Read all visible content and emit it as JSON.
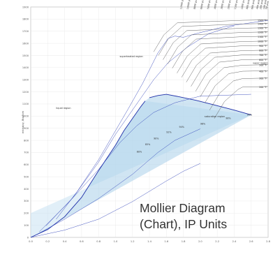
{
  "chart_data": {
    "type": "line",
    "title": "Mollier Diagram",
    "subtitle": "(Chart), IP Units",
    "xlabel": "",
    "ylabel": "enthalpy, Btu/lbm",
    "xlim": [
      0.0,
      2.8
    ],
    "ylim": [
      0,
      1900
    ],
    "x_ticks": [
      "0.0",
      "0.2",
      "0.4",
      "0.6",
      "0.8",
      "1.0",
      "1.2",
      "1.4",
      "1.6",
      "1.8",
      "2.0",
      "2.2",
      "2.4",
      "2.6",
      "2.8"
    ],
    "y_ticks": [
      "0",
      "100",
      "200",
      "300",
      "400",
      "500",
      "600",
      "700",
      "800",
      "900",
      "1000",
      "1100",
      "1200",
      "1300",
      "1400",
      "1500",
      "1600",
      "1700",
      "1800",
      "1900"
    ],
    "grid": true,
    "region_labels": [
      {
        "text": "superheated region",
        "x": 1.05,
        "y": 1485
      },
      {
        "text": "vapor region",
        "x": 2.62,
        "y": 1430
      },
      {
        "text": "liquid region",
        "x": 0.3,
        "y": 1060
      },
      {
        "text": "saturation region",
        "x": 2.05,
        "y": 990
      }
    ],
    "saturation_dome": {
      "liquid_line": [
        [
          0.0,
          0
        ],
        [
          0.2,
          65
        ],
        [
          0.4,
          170
        ],
        [
          0.6,
          330
        ],
        [
          0.8,
          550
        ],
        [
          1.0,
          760
        ],
        [
          1.1,
          880
        ],
        [
          1.2,
          980
        ],
        [
          1.3,
          1080
        ],
        [
          1.35,
          1125
        ]
      ],
      "critical_point": [
        1.4,
        1152
      ],
      "vapor_line": [
        [
          1.4,
          1152
        ],
        [
          1.5,
          1170
        ],
        [
          1.6,
          1180
        ],
        [
          1.75,
          1160
        ],
        [
          1.95,
          1130
        ],
        [
          2.15,
          1095
        ],
        [
          2.4,
          1050
        ],
        [
          2.6,
          1010
        ]
      ]
    },
    "isobars": [
      {
        "label": "0.1 psia",
        "points": [
          [
            0.0,
            0
          ],
          [
            0.4,
            60
          ],
          [
            0.8,
            150
          ],
          [
            1.2,
            295
          ],
          [
            1.6,
            465
          ],
          [
            1.8,
            545
          ],
          [
            2.0,
            610
          ]
        ]
      },
      {
        "label": "1 psia",
        "points": [
          [
            0.05,
            15
          ],
          [
            0.4,
            150
          ],
          [
            0.8,
            320
          ],
          [
            1.2,
            520
          ],
          [
            1.5,
            700
          ],
          [
            1.7,
            800
          ],
          [
            2.0,
            895
          ]
        ]
      },
      {
        "label": "10 psia",
        "points": [
          [
            0.1,
            45
          ],
          [
            0.45,
            290
          ],
          [
            0.8,
            560
          ],
          [
            1.05,
            780
          ],
          [
            1.25,
            920
          ],
          [
            1.45,
            1030
          ],
          [
            1.7,
            1110
          ],
          [
            2.0,
            1165
          ],
          [
            2.6,
            1180
          ]
        ]
      },
      {
        "label": "100 psia",
        "points": [
          [
            0.18,
            95
          ],
          [
            0.5,
            330
          ],
          [
            0.8,
            620
          ],
          [
            1.0,
            850
          ],
          [
            1.15,
            1000
          ],
          [
            1.3,
            1150
          ],
          [
            1.45,
            1300
          ],
          [
            1.62,
            1440
          ],
          [
            1.85,
            1570
          ],
          [
            2.1,
            1680
          ],
          [
            2.4,
            1745
          ]
        ]
      },
      {
        "label": "1000 psia",
        "points": [
          [
            0.3,
            150
          ],
          [
            0.55,
            380
          ],
          [
            0.8,
            640
          ],
          [
            1.0,
            880
          ],
          [
            1.15,
            1060
          ],
          [
            1.32,
            1270
          ],
          [
            1.5,
            1520
          ],
          [
            1.62,
            1640
          ],
          [
            1.7,
            1660
          ],
          [
            1.8,
            1650
          ],
          [
            1.95,
            1680
          ],
          [
            2.3,
            1740
          ],
          [
            2.8,
            1790
          ]
        ]
      }
    ],
    "isotherms_right_labels": [
      "1500 °F",
      "1400 °F",
      "1300 °F",
      "1200 °F",
      "1100 °F",
      "1000 °F",
      "900 °F",
      "800 °F",
      "700 °F",
      "600 °F",
      "500 °F",
      "400 °F",
      "300 °F",
      "200 °F"
    ],
    "isotherms_right_values": [
      1790,
      1760,
      1725,
      1690,
      1655,
      1615,
      1580,
      1540,
      1505,
      1465,
      1420,
      1370,
      1310,
      1240
    ],
    "pressure_top_labels": [
      "12000 psia",
      "10000 psia",
      "8000 psia",
      "6000 psia",
      "5000 psia",
      "4000 psia",
      "3000 psia",
      "2000 psia",
      "1500 psia",
      "1000 psia",
      "800 psia",
      "600 psia",
      "400 psia",
      "200 psia",
      "100 psia",
      "50 psia"
    ],
    "pressure_top_x": [
      1.78,
      1.86,
      1.94,
      2.02,
      2.1,
      2.18,
      2.26,
      2.34,
      2.42,
      2.5,
      2.56,
      2.62,
      2.68,
      2.72,
      2.76,
      2.79
    ],
    "quality_labels": [
      "99%",
      "98%",
      "96%",
      "94%",
      "92%",
      "90%",
      "85%",
      "80%"
    ],
    "quality_label_points": [
      [
        2.55,
        1005
      ],
      [
        2.3,
        975
      ],
      [
        2.0,
        930
      ],
      [
        1.75,
        905
      ],
      [
        1.6,
        860
      ],
      [
        1.45,
        810
      ],
      [
        1.35,
        760
      ],
      [
        1.25,
        700
      ]
    ]
  }
}
